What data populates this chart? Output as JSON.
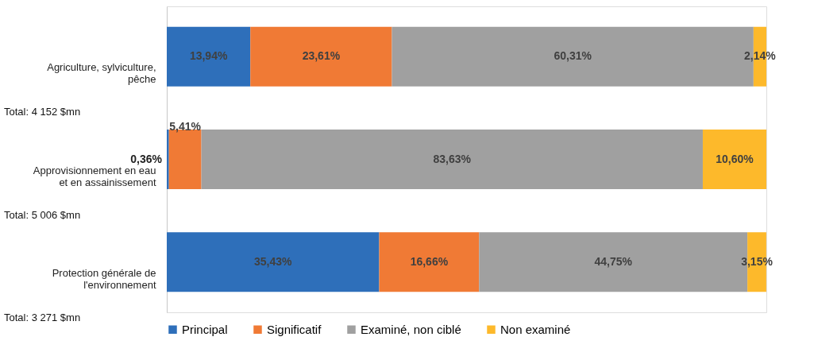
{
  "chart_data": {
    "type": "bar",
    "orientation": "horizontal",
    "stacked": true,
    "categories": [
      "Agriculture, sylviculture, pêche",
      "Approvisionnement en eau et en assainissement",
      "Protection générale de l'environnement"
    ],
    "series": [
      {
        "name": "Principal",
        "color": "#2e6fba",
        "values": [
          13.94,
          0.36,
          35.43
        ],
        "value_labels": [
          "13,94%",
          "0,36%",
          "35,43%"
        ]
      },
      {
        "name": "Significatif",
        "color": "#f07a35",
        "values": [
          23.61,
          5.41,
          16.66
        ],
        "value_labels": [
          "23,61%",
          "5,41%",
          "16,66%"
        ]
      },
      {
        "name": "Examiné, non ciblé",
        "color": "#a0a0a0",
        "values": [
          60.31,
          83.63,
          44.75
        ],
        "value_labels": [
          "60,31%",
          "83,63%",
          "44,75%"
        ]
      },
      {
        "name": "Non examiné",
        "color": "#fdb92b",
        "values": [
          2.14,
          10.6,
          3.15
        ],
        "value_labels": [
          "2,14%",
          "10,60%",
          "3,15%"
        ]
      }
    ],
    "xlim": [
      0,
      100
    ],
    "tick_labels": "y",
    "grid": false,
    "legend": "bottom",
    "annotations": [
      "Total: 4 152 $mn",
      "Total: 5 006 $mn",
      "Total: 3 271 $mn"
    ]
  }
}
